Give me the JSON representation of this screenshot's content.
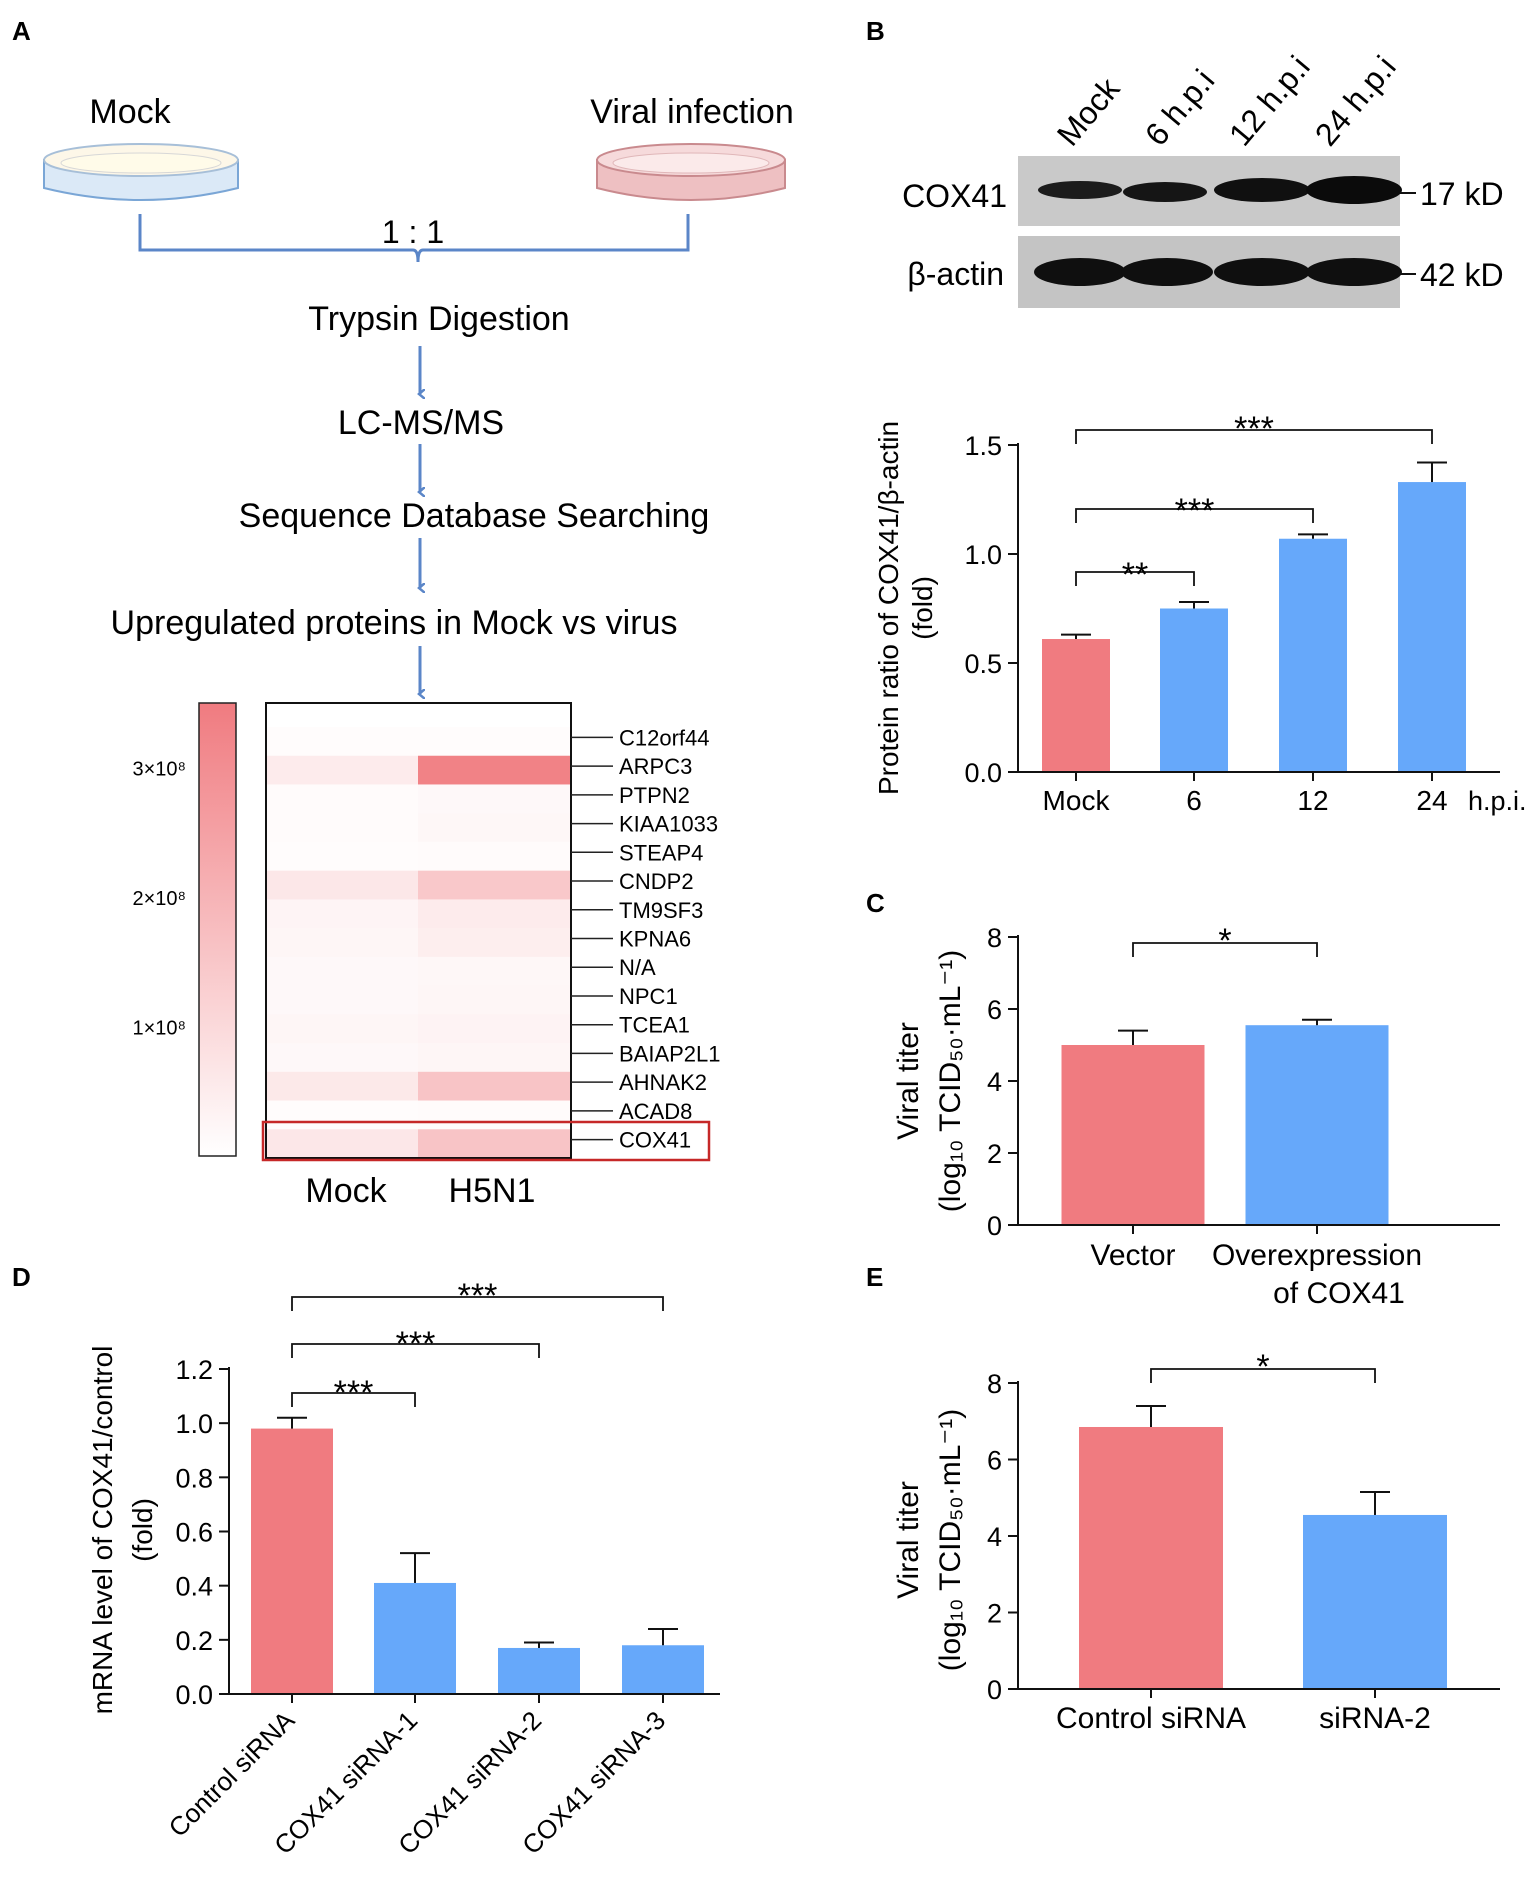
{
  "colors": {
    "red": "#f07b80",
    "blue": "#66a8fa",
    "dark_red": "#c62828",
    "arrow": "#5b86c8",
    "axis": "#111111"
  },
  "panels": {
    "a": "A",
    "b": "B",
    "c": "C",
    "d": "D",
    "e": "E"
  },
  "workflow": {
    "mock": "Mock",
    "viral": "Viral infection",
    "ratio": "1 : 1",
    "steps": [
      "Trypsin Digestion",
      "LC-MS/MS",
      "Sequence Database Searching",
      "Upregulated proteins in Mock vs virus"
    ]
  },
  "heatmap": {
    "scale_ticks": [
      "3×10⁸",
      "2×10⁸",
      "1×10⁸"
    ],
    "scale_values": [
      300000000,
      200000000,
      100000000
    ],
    "scale_max": 350000000,
    "columns": [
      "Mock",
      "H5N1"
    ],
    "genes": [
      "C12orf44",
      "ARPC3",
      "PTPN2",
      "KIAA1033",
      "STEAP4",
      "CNDP2",
      "TM9SF3",
      "KPNA6",
      "N/A",
      "NPC1",
      "TCEA1",
      "BAIAP2L1",
      "AHNAK2",
      "ACAD8",
      "COX41"
    ],
    "intensity": [
      [
        0.02,
        0.02
      ],
      [
        0.15,
        0.95
      ],
      [
        0.03,
        0.05
      ],
      [
        0.03,
        0.06
      ],
      [
        0.02,
        0.03
      ],
      [
        0.18,
        0.42
      ],
      [
        0.08,
        0.15
      ],
      [
        0.07,
        0.13
      ],
      [
        0.05,
        0.06
      ],
      [
        0.05,
        0.07
      ],
      [
        0.07,
        0.09
      ],
      [
        0.05,
        0.07
      ],
      [
        0.17,
        0.45
      ],
      [
        0.02,
        0.03
      ],
      [
        0.18,
        0.45
      ]
    ],
    "highlight": "COX41"
  },
  "western": {
    "lanes": [
      "Mock",
      "6 h.p.i",
      "12 h.p.i",
      "24 h.p.i"
    ],
    "rows": [
      {
        "name": "COX41",
        "size": "17 kD"
      },
      {
        "name": "β-actin",
        "size": "42 kD"
      }
    ]
  },
  "chart_data": [
    {
      "id": "B",
      "type": "bar",
      "categories": [
        "Mock",
        "6",
        "12",
        "24"
      ],
      "values": [
        0.61,
        0.75,
        1.07,
        1.33
      ],
      "errors": [
        0.02,
        0.03,
        0.02,
        0.09
      ],
      "xunit": "h.p.i.",
      "ylabel_lines": [
        "Protein ratio of COX41/β-actin",
        "(fold)"
      ],
      "ylim": [
        0,
        1.5
      ],
      "yticks": [
        "0.0",
        "0.5",
        "1.0",
        "1.5"
      ],
      "ytick_values": [
        0,
        0.5,
        1.0,
        1.5
      ],
      "significance": [
        {
          "from": 0,
          "to": 1,
          "label": "**"
        },
        {
          "from": 0,
          "to": 2,
          "label": "***"
        },
        {
          "from": 0,
          "to": 3,
          "label": "***"
        }
      ]
    },
    {
      "id": "C",
      "type": "bar",
      "categories": [
        "Vector",
        "Overexpression\nof COX41"
      ],
      "values": [
        5.0,
        5.55
      ],
      "errors": [
        0.4,
        0.15
      ],
      "ylabel_lines": [
        "Viral titer",
        "(log₁₀ TCID₅₀·mL⁻¹)"
      ],
      "ylim": [
        0,
        8
      ],
      "yticks": [
        "0",
        "2",
        "4",
        "6",
        "8"
      ],
      "ytick_values": [
        0,
        2,
        4,
        6,
        8
      ],
      "significance": [
        {
          "from": 0,
          "to": 1,
          "label": "*"
        }
      ]
    },
    {
      "id": "D",
      "type": "bar",
      "categories": [
        "Control siRNA",
        "COX41 siRNA-1",
        "COX41 siRNA-2",
        "COX41 siRNA-3"
      ],
      "values": [
        0.98,
        0.41,
        0.17,
        0.18
      ],
      "errors": [
        0.04,
        0.11,
        0.02,
        0.06
      ],
      "ylabel_lines": [
        "mRNA level of COX41/control",
        "(fold)"
      ],
      "ylim": [
        0,
        1.2
      ],
      "yticks": [
        "0.0",
        "0.2",
        "0.4",
        "0.6",
        "0.8",
        "1.0",
        "1.2"
      ],
      "ytick_values": [
        0,
        0.2,
        0.4,
        0.6,
        0.8,
        1.0,
        1.2
      ],
      "significance": [
        {
          "from": 0,
          "to": 1,
          "label": "***"
        },
        {
          "from": 0,
          "to": 2,
          "label": "***"
        },
        {
          "from": 0,
          "to": 3,
          "label": "***"
        }
      ]
    },
    {
      "id": "E",
      "type": "bar",
      "categories": [
        "Control siRNA",
        "siRNA-2"
      ],
      "values": [
        6.85,
        4.55
      ],
      "errors": [
        0.55,
        0.6
      ],
      "ylabel_lines": [
        "Viral titer",
        "(log₁₀ TCID₅₀·mL⁻¹)"
      ],
      "ylim": [
        0,
        8
      ],
      "yticks": [
        "0",
        "2",
        "4",
        "6",
        "8"
      ],
      "ytick_values": [
        0,
        2,
        4,
        6,
        8
      ],
      "significance": [
        {
          "from": 0,
          "to": 1,
          "label": "*"
        }
      ]
    }
  ]
}
